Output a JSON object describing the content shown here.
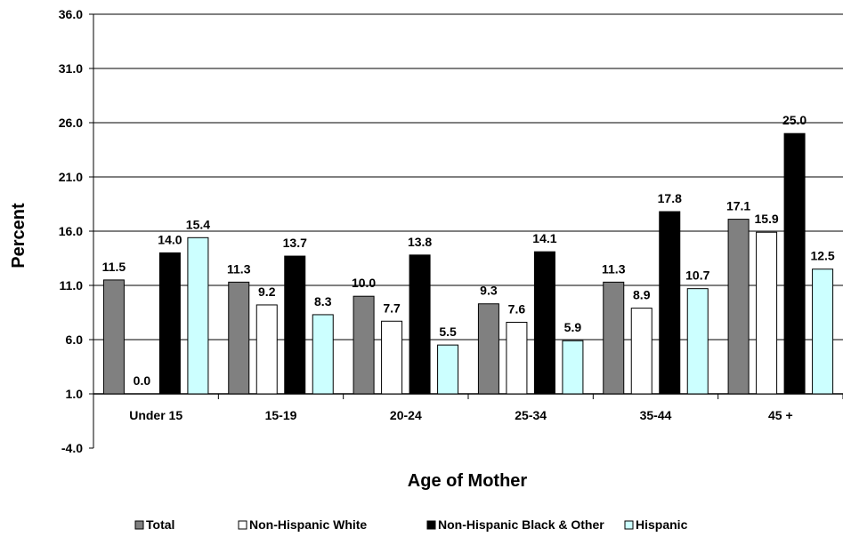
{
  "chart_data": {
    "type": "bar",
    "title": "",
    "xlabel": "Age of Mother",
    "ylabel": "Percent",
    "ylim": [
      -4.0,
      36.0
    ],
    "y_ticks": [
      "-4.0",
      "1.0",
      "6.0",
      "11.0",
      "16.0",
      "21.0",
      "26.0",
      "31.0",
      "36.0"
    ],
    "baseline": 1.0,
    "grid": true,
    "legend_position": "bottom",
    "categories": [
      "Under 15",
      "15-19",
      "20-24",
      "25-34",
      "35-44",
      "45 +"
    ],
    "series": [
      {
        "name": "Total",
        "color": "#808080",
        "values": [
          11.5,
          11.3,
          10.0,
          9.3,
          11.3,
          17.1
        ],
        "labels": [
          "11.5",
          "11.3",
          "10.0",
          "9.3",
          "11.3",
          "17.1"
        ]
      },
      {
        "name": "Non-Hispanic White",
        "color": "#ffffff",
        "values": [
          0.0,
          9.2,
          7.7,
          7.6,
          8.9,
          15.9
        ],
        "labels": [
          "0.0",
          "9.2",
          "7.7",
          "7.6",
          "8.9",
          "15.9"
        ]
      },
      {
        "name": "Non-Hispanic Black & Other",
        "color": "#000000",
        "values": [
          14.0,
          13.7,
          13.8,
          14.1,
          17.8,
          25.0
        ],
        "labels": [
          "14.0",
          "13.7",
          "13.8",
          "14.1",
          "17.8",
          "25.0"
        ]
      },
      {
        "name": "Hispanic",
        "color": "#ccffff",
        "values": [
          15.4,
          8.3,
          5.5,
          5.9,
          10.7,
          12.5
        ],
        "labels": [
          "15.4",
          "8.3",
          "5.5",
          "5.9",
          "10.7",
          "12.5"
        ]
      }
    ]
  }
}
